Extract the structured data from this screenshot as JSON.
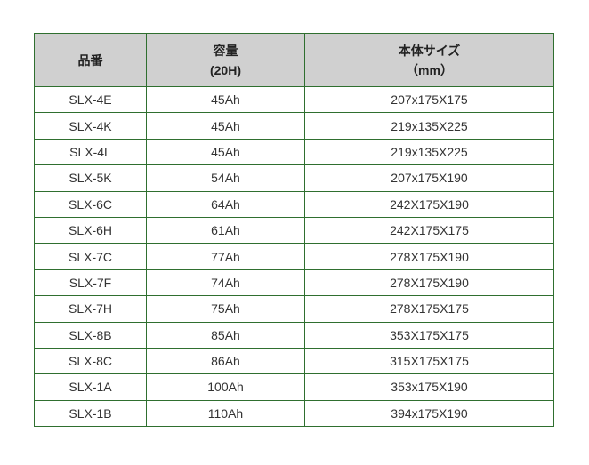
{
  "table": {
    "headers": [
      {
        "line1": "品番",
        "line2": ""
      },
      {
        "line1": "容量",
        "line2": "(20H)"
      },
      {
        "line1": "本体サイズ",
        "line2": "（mm）"
      }
    ],
    "rows": [
      [
        "SLX-4E",
        "45Ah",
        "207x175X175"
      ],
      [
        "SLX-4K",
        "45Ah",
        "219x135X225"
      ],
      [
        "SLX-4L",
        "45Ah",
        "219x135X225"
      ],
      [
        "SLX-5K",
        "54Ah",
        "207x175X190"
      ],
      [
        "SLX-6C",
        "64Ah",
        "242X175X190"
      ],
      [
        "SLX-6H",
        "61Ah",
        "242X175X175"
      ],
      [
        "SLX-7C",
        "77Ah",
        "278X175X190"
      ],
      [
        "SLX-7F",
        "74Ah",
        "278X175X190"
      ],
      [
        "SLX-7H",
        "75Ah",
        "278X175X175"
      ],
      [
        "SLX-8B",
        "85Ah",
        "353X175X175"
      ],
      [
        "SLX-8C",
        "86Ah",
        "315X175X175"
      ],
      [
        "SLX-1A",
        "100Ah",
        "353x175X190"
      ],
      [
        "SLX-1B",
        "110Ah",
        "394x175X190"
      ]
    ]
  },
  "colors": {
    "border": "#2f6f2f",
    "header_bg": "#d0d0d0"
  }
}
